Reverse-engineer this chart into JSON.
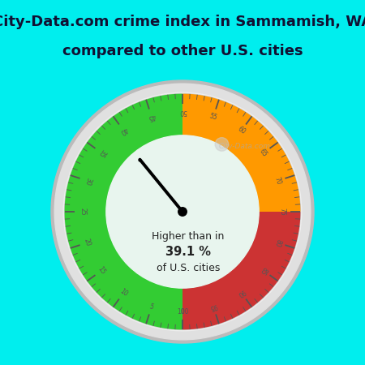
{
  "title_line1": "City-Data.com crime index in Sammamish, WA",
  "title_line2": "compared to other U.S. cities",
  "title_fontsize": 13,
  "title_color": "#111133",
  "background_color": "#00EEEE",
  "gauge_face_color": "#e8f5ee",
  "value": 39.1,
  "label_line1": "Higher than in",
  "label_line2": "39.1 %",
  "label_line3": "of U.S. cities",
  "green_color": "#33cc33",
  "orange_color": "#ff9900",
  "red_color": "#cc3333",
  "rim_color": "#cccccc",
  "rim_outer_color": "#d8d8d8",
  "tick_color": "#555555",
  "label_color": "#555555",
  "watermark": "City-Data.com",
  "outer_r": 1.05,
  "inner_r": 0.68
}
